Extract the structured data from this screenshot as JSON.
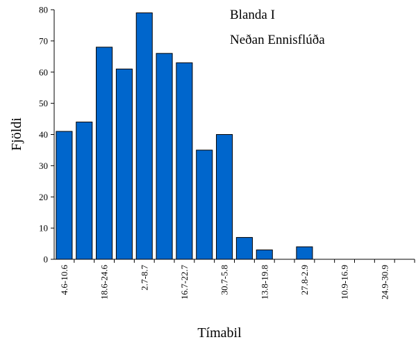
{
  "chart_data": {
    "type": "bar",
    "title_lines": [
      "Blanda   I",
      "Neðan Ennisflúða"
    ],
    "xlabel": "Tímabil",
    "ylabel": "Fjöldi",
    "ylim": [
      0,
      80
    ],
    "yticks": [
      0,
      10,
      20,
      30,
      40,
      50,
      60,
      70,
      80
    ],
    "grid": false,
    "bar_color": "#0066CC",
    "categories": [
      "4.6-10.6",
      "",
      "18.6-24.6",
      "",
      "2.7-8.7",
      "",
      "16.7-22.7",
      "",
      "30.7-5.8",
      "",
      "13.8-19.8",
      "",
      "27.8-2.9",
      "",
      "10.9-16.9",
      "",
      "24.9-30.9",
      ""
    ],
    "values": [
      41,
      44,
      68,
      61,
      79,
      66,
      63,
      35,
      40,
      7,
      3,
      0,
      4,
      0,
      0,
      0,
      0,
      0
    ]
  }
}
